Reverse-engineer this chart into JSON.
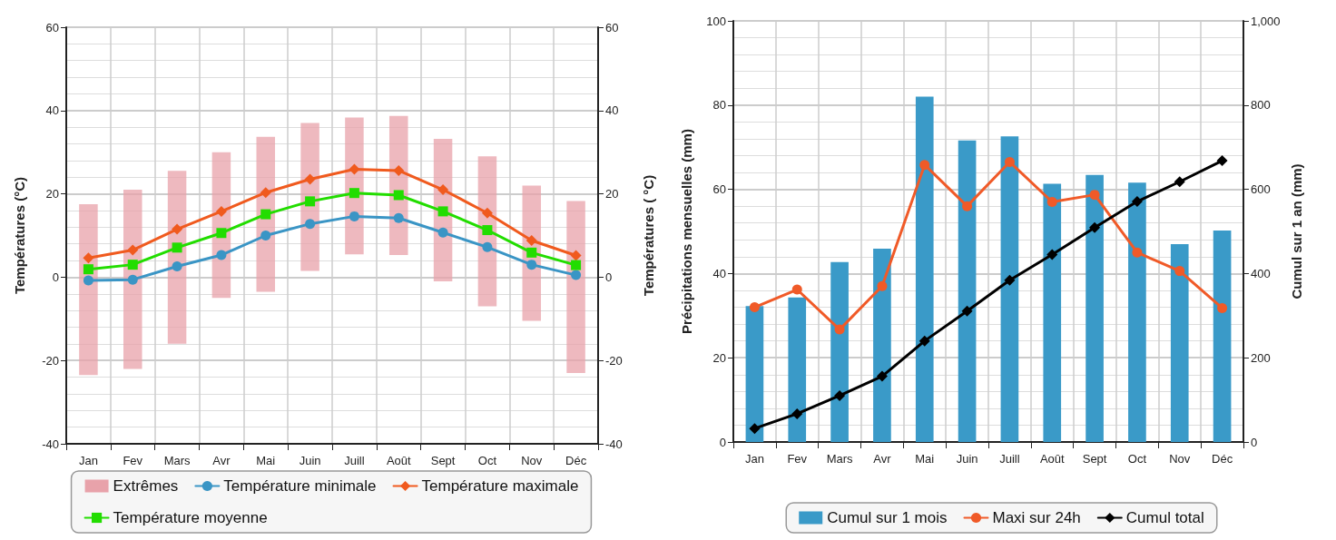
{
  "chart_data": [
    {
      "type": "line",
      "categories": [
        "Jan",
        "Fev",
        "Mars",
        "Avr",
        "Mai",
        "Juin",
        "Juill",
        "Août",
        "Sept",
        "Oct",
        "Nov",
        "Déc"
      ],
      "ylabel": "Températures (°C)",
      "y2label": "Températures ( °C)",
      "ylim": [
        -40,
        60
      ],
      "yticks": [
        -40,
        -20,
        0,
        20,
        40,
        60
      ],
      "y2lim": [
        -40,
        60
      ],
      "y2ticks": [
        -40,
        -20,
        0,
        20,
        40,
        60
      ],
      "grid": true,
      "legend": "bottom",
      "line_style": "solid",
      "series": [
        {
          "name": "Extrêmes",
          "type": "bar",
          "color": "#e8a2aa",
          "base": [
            -23.5,
            -22,
            -16,
            -5,
            -3.5,
            1.5,
            5.5,
            5.3,
            -1,
            -7,
            -10.5,
            -23
          ],
          "values": [
            41,
            43,
            41.5,
            35,
            37.2,
            35.5,
            32.8,
            33.4,
            34.2,
            36,
            32.5,
            41.3
          ]
        },
        {
          "name": "Température minimale",
          "marker": "circle",
          "color": "#3a95c5",
          "values": [
            -0.8,
            -0.6,
            2.6,
            5.3,
            10,
            12.8,
            14.6,
            14.2,
            10.7,
            7.2,
            3,
            0.5
          ]
        },
        {
          "name": "Température maximale",
          "marker": "diamond",
          "color": "#f05a1e",
          "values": [
            4.6,
            6.5,
            11.5,
            15.8,
            20.3,
            23.5,
            25.9,
            25.6,
            21,
            15.4,
            8.8,
            5.2
          ]
        },
        {
          "name": "Température moyenne",
          "marker": "square",
          "color": "#22dd00",
          "values": [
            1.9,
            3,
            7.1,
            10.6,
            15.1,
            18.2,
            20.2,
            19.7,
            15.8,
            11.3,
            5.9,
            2.9
          ]
        }
      ]
    },
    {
      "type": "bar",
      "categories": [
        "Jan",
        "Fev",
        "Mars",
        "Avr",
        "Mai",
        "Juin",
        "Juill",
        "Août",
        "Sept",
        "Oct",
        "Nov",
        "Déc"
      ],
      "ylabel": "Précipitations mensuelles (mm)",
      "y2label": "Cumul sur 1 an (mm)",
      "ylim": [
        0,
        100
      ],
      "yticks": [
        0,
        20,
        40,
        60,
        80,
        100
      ],
      "y2lim": [
        0,
        1000
      ],
      "y2ticks": [
        0,
        200,
        400,
        600,
        800,
        {
          "value": 1000,
          "label": "1,000"
        }
      ],
      "grid": true,
      "legend": "bottom",
      "line_style": "solid",
      "series": [
        {
          "name": "Cumul sur 1 mois",
          "color": "#3a9ac8",
          "values": [
            32.3,
            34.3,
            42.7,
            45.9,
            82,
            71.6,
            72.6,
            61.3,
            63.4,
            61.6,
            47,
            50.2
          ]
        },
        {
          "name": "Maxi sur 24h",
          "type": "line",
          "marker": "circle",
          "color": "#f05a28",
          "values": [
            32,
            36.2,
            26.7,
            37,
            65.8,
            56,
            66.5,
            57,
            58.7,
            45,
            40.6,
            31.8
          ]
        },
        {
          "name": "Cumul total",
          "type": "line",
          "marker": "diamond",
          "axis": "y2",
          "color": "#000000",
          "values": [
            32,
            67,
            110,
            156,
            240,
            311,
            384,
            445,
            509,
            571,
            618,
            668
          ]
        }
      ]
    }
  ]
}
